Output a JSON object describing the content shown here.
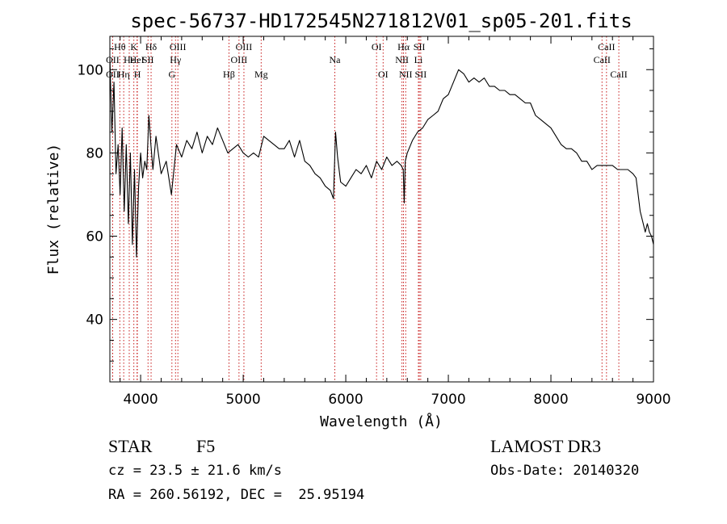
{
  "chart_data": {
    "type": "line",
    "title": "spec-56737-HD172545N271812V01_sp05-201.fits",
    "xlabel": "Wavelength (Å)",
    "ylabel": "Flux (relative)",
    "xlim": [
      3700,
      9000
    ],
    "ylim": [
      25,
      108
    ],
    "xticks": [
      4000,
      5000,
      6000,
      7000,
      8000,
      9000
    ],
    "yticks": [
      40,
      60,
      80,
      100
    ],
    "grid": false,
    "series": [
      {
        "color": "#000000",
        "x": [
          3700,
          3720,
          3740,
          3760,
          3780,
          3800,
          3820,
          3840,
          3860,
          3880,
          3900,
          3920,
          3940,
          3960,
          3980,
          4000,
          4020,
          4040,
          4060,
          4080,
          4100,
          4120,
          4150,
          4200,
          4250,
          4300,
          4350,
          4400,
          4450,
          4500,
          4550,
          4600,
          4650,
          4700,
          4750,
          4800,
          4850,
          4900,
          4950,
          5000,
          5050,
          5100,
          5150,
          5200,
          5250,
          5300,
          5350,
          5400,
          5450,
          5500,
          5550,
          5600,
          5650,
          5700,
          5750,
          5800,
          5850,
          5880,
          5900,
          5920,
          5950,
          6000,
          6050,
          6100,
          6150,
          6200,
          6250,
          6300,
          6350,
          6400,
          6450,
          6500,
          6540,
          6560,
          6570,
          6580,
          6600,
          6650,
          6700,
          6750,
          6800,
          6850,
          6900,
          6950,
          7000,
          7050,
          7100,
          7150,
          7200,
          7250,
          7300,
          7350,
          7400,
          7450,
          7500,
          7550,
          7600,
          7650,
          7700,
          7750,
          7800,
          7850,
          7900,
          7950,
          8000,
          8050,
          8100,
          8150,
          8200,
          8250,
          8300,
          8350,
          8400,
          8450,
          8500,
          8550,
          8600,
          8650,
          8700,
          8750,
          8800,
          8830,
          8850,
          8870,
          8900,
          8920,
          8940,
          8960,
          8980,
          9000
        ],
        "y": [
          103,
          85,
          97,
          75,
          82,
          70,
          86,
          66,
          82,
          63,
          80,
          58,
          76,
          55,
          72,
          80,
          74,
          78,
          76,
          89,
          82,
          76,
          84,
          75,
          78,
          70,
          82,
          79,
          83,
          81,
          85,
          80,
          84,
          82,
          86,
          83,
          80,
          81,
          82,
          80,
          79,
          80,
          79,
          84,
          83,
          82,
          81,
          81,
          83,
          79,
          83,
          78,
          77,
          75,
          74,
          72,
          71,
          69,
          85,
          79,
          73,
          72,
          74,
          76,
          75,
          77,
          74,
          78,
          76,
          79,
          77,
          78,
          77,
          76,
          68,
          78,
          80,
          83,
          85,
          86,
          88,
          89,
          90,
          93,
          94,
          97,
          100,
          99,
          97,
          98,
          97,
          98,
          96,
          96,
          95,
          95,
          94,
          94,
          93,
          92,
          92,
          89,
          88,
          87,
          86,
          84,
          82,
          81,
          81,
          80,
          78,
          78,
          76,
          77,
          77,
          77,
          77,
          76,
          76,
          76,
          75,
          74,
          70,
          66,
          63,
          61,
          63,
          61,
          60,
          58
        ]
      }
    ],
    "lines": [
      {
        "label": "Hθ",
        "x": 3797,
        "row": 1
      },
      {
        "label": "OII",
        "x": 3727,
        "row": 2
      },
      {
        "label": "OII",
        "x": 3727,
        "row": 3
      },
      {
        "label": "Hε",
        "x": 3889,
        "row": 2
      },
      {
        "label": "Hη",
        "x": 3835,
        "row": 3
      },
      {
        "label": "K",
        "x": 3934,
        "row": 1
      },
      {
        "label": "H",
        "x": 3968,
        "row": 3
      },
      {
        "label": "HeI",
        "x": 3965,
        "row": 2
      },
      {
        "label": "SII",
        "x": 4072,
        "row": 2
      },
      {
        "label": "Hδ",
        "x": 4102,
        "row": 1
      },
      {
        "label": "OIII",
        "x": 4363,
        "row": 1
      },
      {
        "label": "Hγ",
        "x": 4340,
        "row": 2
      },
      {
        "label": "G",
        "x": 4305,
        "row": 3
      },
      {
        "label": "Hβ",
        "x": 4861,
        "row": 3
      },
      {
        "label": "OIII",
        "x": 5007,
        "row": 1
      },
      {
        "label": "OIII",
        "x": 4959,
        "row": 2
      },
      {
        "label": "Mg",
        "x": 5175,
        "row": 3
      },
      {
        "label": "Na",
        "x": 5893,
        "row": 2
      },
      {
        "label": "OI",
        "x": 6300,
        "row": 1
      },
      {
        "label": "OI",
        "x": 6364,
        "row": 3
      },
      {
        "label": "Hα",
        "x": 6563,
        "row": 1
      },
      {
        "label": "NII",
        "x": 6548,
        "row": 2
      },
      {
        "label": "NII",
        "x": 6584,
        "row": 3
      },
      {
        "label": "SII",
        "x": 6717,
        "row": 1
      },
      {
        "label": "Li",
        "x": 6708,
        "row": 2
      },
      {
        "label": "SII",
        "x": 6731,
        "row": 3
      },
      {
        "label": "CaII",
        "x": 8542,
        "row": 1
      },
      {
        "label": "CaII",
        "x": 8498,
        "row": 2
      },
      {
        "label": "CaII",
        "x": 8662,
        "row": 3
      }
    ]
  },
  "info": {
    "object_class": "STAR",
    "subclass": "F5",
    "redshift": "cz = 23.5 ± 21.6 km/s",
    "coords": "RA = 260.56192, DEC =  25.95194",
    "survey": "LAMOST DR3",
    "obs_date": "Obs-Date: 20140320"
  },
  "colors": {
    "line": "#000000",
    "marker": "#c00000",
    "background": "#ffffff"
  }
}
